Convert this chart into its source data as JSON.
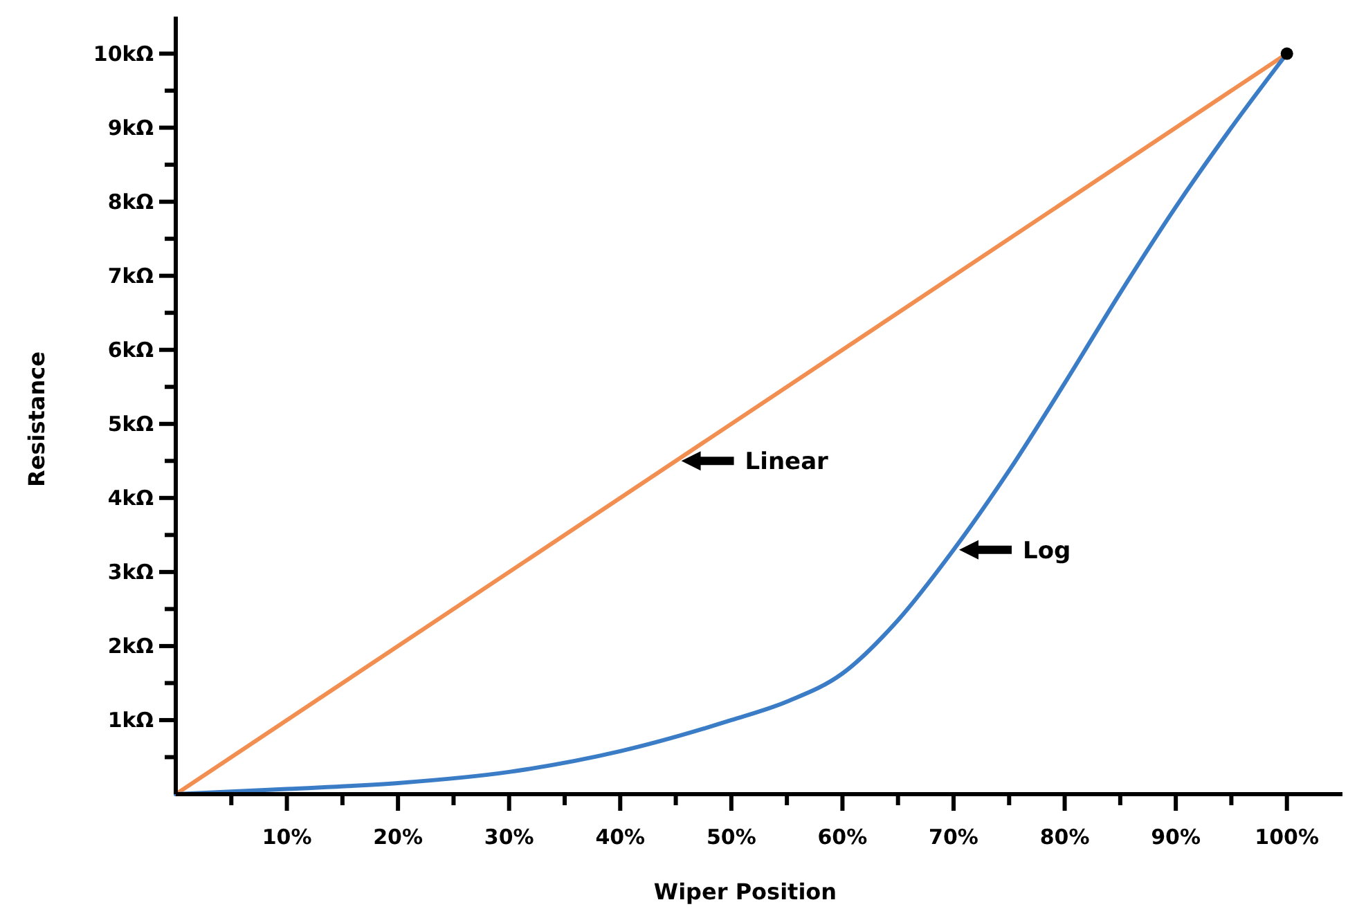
{
  "chart_data": {
    "type": "line",
    "xlabel": "Wiper Position",
    "ylabel": "Resistance",
    "xlim": [
      0,
      105
    ],
    "ylim": [
      0,
      10.5
    ],
    "xticks": [
      {
        "value": 5,
        "label": null
      },
      {
        "value": 10,
        "label": "10%"
      },
      {
        "value": 15,
        "label": null
      },
      {
        "value": 20,
        "label": "20%"
      },
      {
        "value": 25,
        "label": null
      },
      {
        "value": 30,
        "label": "30%"
      },
      {
        "value": 35,
        "label": null
      },
      {
        "value": 40,
        "label": "40%"
      },
      {
        "value": 45,
        "label": null
      },
      {
        "value": 50,
        "label": "50%"
      },
      {
        "value": 55,
        "label": null
      },
      {
        "value": 60,
        "label": "60%"
      },
      {
        "value": 65,
        "label": null
      },
      {
        "value": 70,
        "label": "70%"
      },
      {
        "value": 75,
        "label": null
      },
      {
        "value": 80,
        "label": "80%"
      },
      {
        "value": 85,
        "label": null
      },
      {
        "value": 90,
        "label": "90%"
      },
      {
        "value": 95,
        "label": null
      },
      {
        "value": 100,
        "label": "100%"
      }
    ],
    "yticks": [
      {
        "value": 0.5,
        "label": null
      },
      {
        "value": 1,
        "label": "1kΩ"
      },
      {
        "value": 1.5,
        "label": null
      },
      {
        "value": 2,
        "label": "2kΩ"
      },
      {
        "value": 2.5,
        "label": null
      },
      {
        "value": 3,
        "label": "3kΩ"
      },
      {
        "value": 3.5,
        "label": null
      },
      {
        "value": 4,
        "label": "4kΩ"
      },
      {
        "value": 4.5,
        "label": null
      },
      {
        "value": 5,
        "label": "5kΩ"
      },
      {
        "value": 5.5,
        "label": null
      },
      {
        "value": 6,
        "label": "6kΩ"
      },
      {
        "value": 6.5,
        "label": null
      },
      {
        "value": 7,
        "label": "7kΩ"
      },
      {
        "value": 7.5,
        "label": null
      },
      {
        "value": 8,
        "label": "8kΩ"
      },
      {
        "value": 8.5,
        "label": null
      },
      {
        "value": 9,
        "label": "9kΩ"
      },
      {
        "value": 9.5,
        "label": null
      },
      {
        "value": 10,
        "label": "10kΩ"
      }
    ],
    "grid": false,
    "marker": "none",
    "line_style": "solid",
    "series": [
      {
        "color": "#f28e4f",
        "x": [
          0,
          100
        ],
        "values": [
          0,
          10
        ]
      },
      {
        "color": "#3a7cc6",
        "x": [
          0,
          10,
          20,
          30,
          40,
          50,
          55,
          60,
          65,
          70,
          75,
          80,
          85,
          90,
          95,
          100
        ],
        "values": [
          0,
          0.07,
          0.15,
          0.3,
          0.58,
          1.0,
          1.25,
          1.63,
          2.35,
          3.3,
          4.37,
          5.55,
          6.77,
          7.93,
          9.0,
          10
        ]
      },
      {
        "type": "scatter",
        "marker": "circle",
        "color": "#000000",
        "x": [
          100
        ],
        "values": [
          10
        ]
      }
    ],
    "annotations": [
      {
        "text": "Linear",
        "x": 45,
        "y": 4.5
      },
      {
        "text": "Log",
        "x": 70,
        "y": 3.3
      }
    ]
  }
}
